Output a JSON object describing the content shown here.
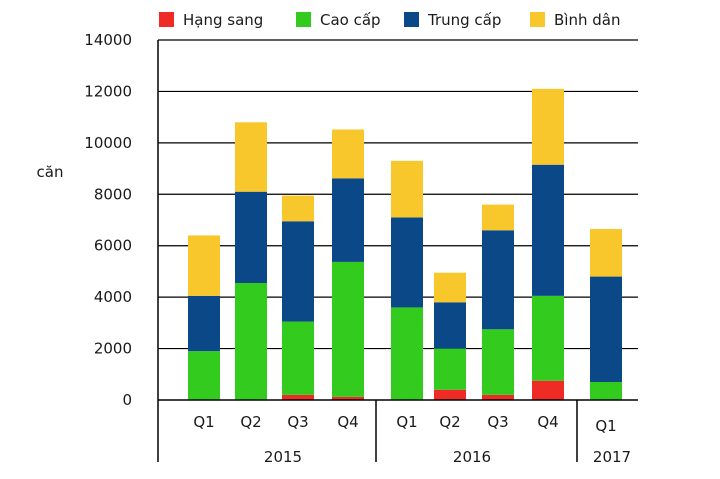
{
  "chart_data": {
    "type": "bar",
    "stacked": true,
    "ylabel": "căn",
    "ylim": [
      0,
      14000
    ],
    "yticks": [
      0,
      2000,
      4000,
      6000,
      8000,
      10000,
      12000,
      14000
    ],
    "grid": true,
    "legend_position": "top",
    "categories": [
      "Q1",
      "Q2",
      "Q3",
      "Q4",
      "Q1",
      "Q2",
      "Q3",
      "Q4",
      "Q1"
    ],
    "groups": [
      {
        "label": "2015",
        "count": 4
      },
      {
        "label": "2016",
        "count": 4
      },
      {
        "label": "2017",
        "count": 1
      }
    ],
    "series": [
      {
        "name": "Hạng sang",
        "color": "#ee2b24",
        "values": [
          0,
          0,
          200,
          120,
          0,
          400,
          200,
          750,
          0
        ]
      },
      {
        "name": "Cao cấp",
        "color": "#33cc1e",
        "values": [
          1900,
          4550,
          2850,
          5250,
          3600,
          1600,
          2550,
          3300,
          700
        ]
      },
      {
        "name": "Trung cấp",
        "color": "#0b4887",
        "values": [
          2150,
          3550,
          3900,
          3250,
          3500,
          1800,
          3850,
          5100,
          4100
        ]
      },
      {
        "name": "Bình dân",
        "color": "#f8c72b",
        "values": [
          2350,
          2700,
          1000,
          1900,
          2200,
          1150,
          1000,
          2950,
          1850
        ]
      }
    ]
  }
}
